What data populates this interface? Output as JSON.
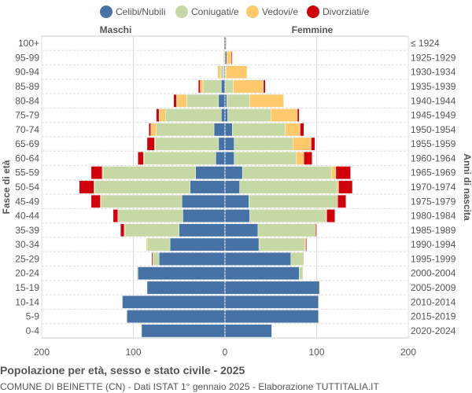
{
  "chart_data": {
    "type": "bar",
    "orientation": "horizontal-pyramid",
    "title": "Popolazione per età, sesso e stato civile - 2025",
    "subtitle": "COMUNE DI BEINETTE (CN) - Dati ISTAT 1° gennaio 2025 - Elaborazione TUTTITALIA.IT",
    "left_label": "Maschi",
    "right_label": "Femmine",
    "ylabel": "Fasce di età",
    "ylabel_right": "Anni di nascita",
    "xlim": [
      -200,
      200
    ],
    "xticks": [
      "200",
      "100",
      "0",
      "100",
      "200"
    ],
    "xtick_values": [
      -200,
      -100,
      0,
      100,
      200
    ],
    "grid": true,
    "legend_position": "top",
    "categories": [
      "100+",
      "95-99",
      "90-94",
      "85-89",
      "80-84",
      "75-79",
      "70-74",
      "65-69",
      "60-64",
      "55-59",
      "50-54",
      "45-49",
      "40-44",
      "35-39",
      "30-34",
      "25-29",
      "20-24",
      "15-19",
      "10-14",
      "5-9",
      "0-4"
    ],
    "birth_years": [
      "≤ 1924",
      "1925-1929",
      "1930-1934",
      "1935-1939",
      "1940-1944",
      "1945-1949",
      "1950-1954",
      "1955-1959",
      "1960-1964",
      "1965-1969",
      "1970-1974",
      "1975-1979",
      "1980-1984",
      "1985-1989",
      "1990-1994",
      "1995-1999",
      "2000-2004",
      "2005-2009",
      "2010-2014",
      "2015-2019",
      "2020-2024"
    ],
    "series": [
      {
        "name": "Celibi/Nubili",
        "color": "#4672a5",
        "male": [
          1,
          0,
          1,
          4,
          7,
          4,
          12,
          7,
          10,
          32,
          38,
          47,
          46,
          50,
          60,
          72,
          95,
          85,
          112,
          107,
          91
        ],
        "female": [
          1,
          2,
          0,
          0,
          2,
          3,
          8,
          10,
          10,
          19,
          16,
          26,
          27,
          36,
          37,
          72,
          81,
          103,
          102,
          102,
          51
        ]
      },
      {
        "name": "Coniugati/e",
        "color": "#c6d9a5",
        "male": [
          0,
          1,
          4,
          20,
          35,
          61,
          63,
          69,
          78,
          101,
          104,
          88,
          71,
          59,
          25,
          7,
          1,
          0,
          0,
          0,
          0
        ],
        "female": [
          0,
          0,
          1,
          9,
          25,
          47,
          58,
          64,
          68,
          97,
          106,
          97,
          83,
          63,
          50,
          14,
          4,
          0,
          0,
          0,
          0
        ]
      },
      {
        "name": "Vedovi/e",
        "color": "#fdc96b",
        "male": [
          0,
          1,
          3,
          3,
          11,
          7,
          6,
          1,
          1,
          1,
          1,
          1,
          0,
          1,
          1,
          0,
          0,
          0,
          0,
          0,
          0
        ],
        "female": [
          1,
          5,
          23,
          33,
          37,
          29,
          16,
          20,
          8,
          5,
          2,
          0,
          1,
          0,
          1,
          0,
          0,
          0,
          0,
          0,
          0
        ]
      },
      {
        "name": "Divorziati/e",
        "color": "#d0000c",
        "male": [
          0,
          0,
          0,
          2,
          3,
          3,
          2,
          8,
          6,
          12,
          16,
          10,
          5,
          4,
          0,
          1,
          0,
          0,
          0,
          0,
          0
        ],
        "female": [
          0,
          1,
          0,
          2,
          0,
          2,
          4,
          4,
          9,
          16,
          15,
          9,
          9,
          1,
          1,
          0,
          0,
          0,
          0,
          0,
          0
        ]
      }
    ]
  }
}
